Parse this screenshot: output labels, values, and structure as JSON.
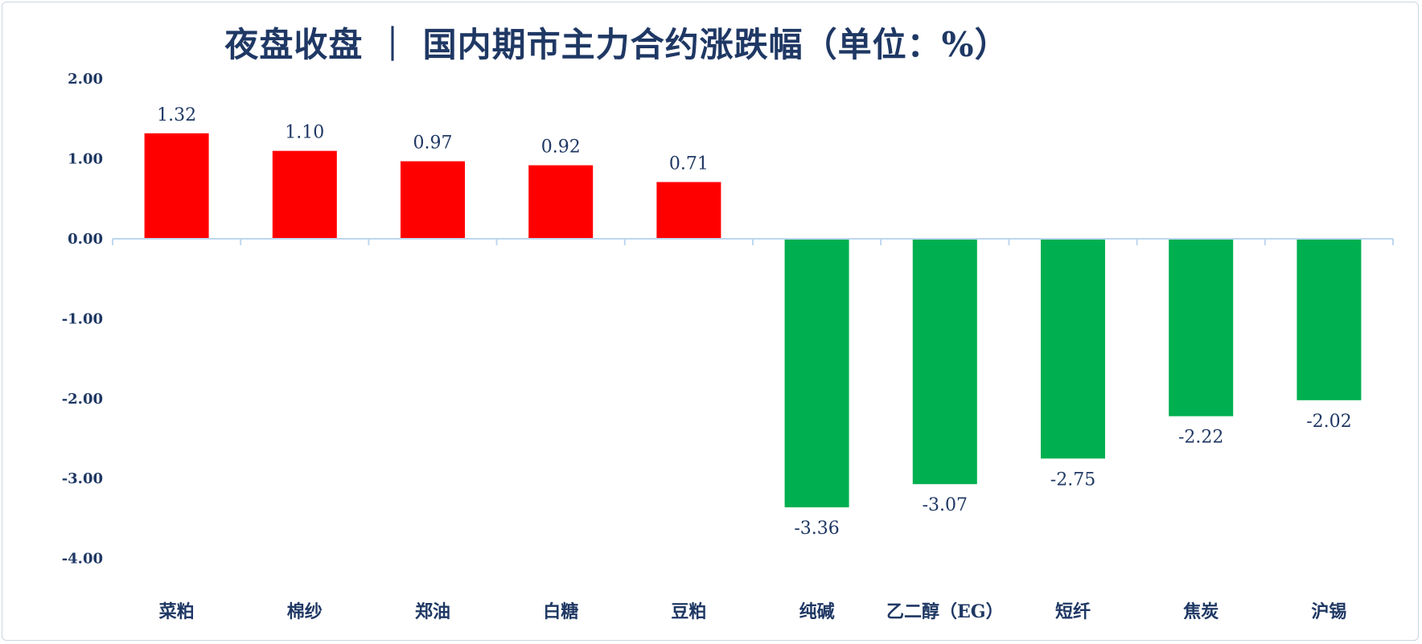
{
  "chart_data": {
    "type": "bar",
    "title": "夜盘收盘 ｜ 国内期市主力合约涨跌幅（单位：%）",
    "categories": [
      "菜粕",
      "棉纱",
      "郑油",
      "白糖",
      "豆粕",
      "纯碱",
      "乙二醇（EG）",
      "短纤",
      "焦炭",
      "沪锡"
    ],
    "values": [
      1.32,
      1.1,
      0.97,
      0.92,
      0.71,
      -3.36,
      -3.07,
      -2.75,
      -2.22,
      -2.02
    ],
    "data_labels": [
      "1.32",
      "1.10",
      "0.97",
      "0.92",
      "0.71",
      "-3.36",
      "-3.07",
      "-2.75",
      "-2.22",
      "-2.02"
    ],
    "yticks": [
      "2.00",
      "1.00",
      "0.00",
      "-1.00",
      "-2.00",
      "-3.00",
      "-4.00"
    ],
    "ytick_values": [
      2,
      1,
      0,
      -1,
      -2,
      -3,
      -4
    ],
    "ylim": [
      -4,
      2
    ],
    "xlabel": "",
    "ylabel": "",
    "grid": false,
    "legend": "none",
    "colors": {
      "positive": "#ff0000",
      "negative": "#00b050",
      "text": "#1f3864",
      "axis": "#bdd7ee"
    }
  }
}
